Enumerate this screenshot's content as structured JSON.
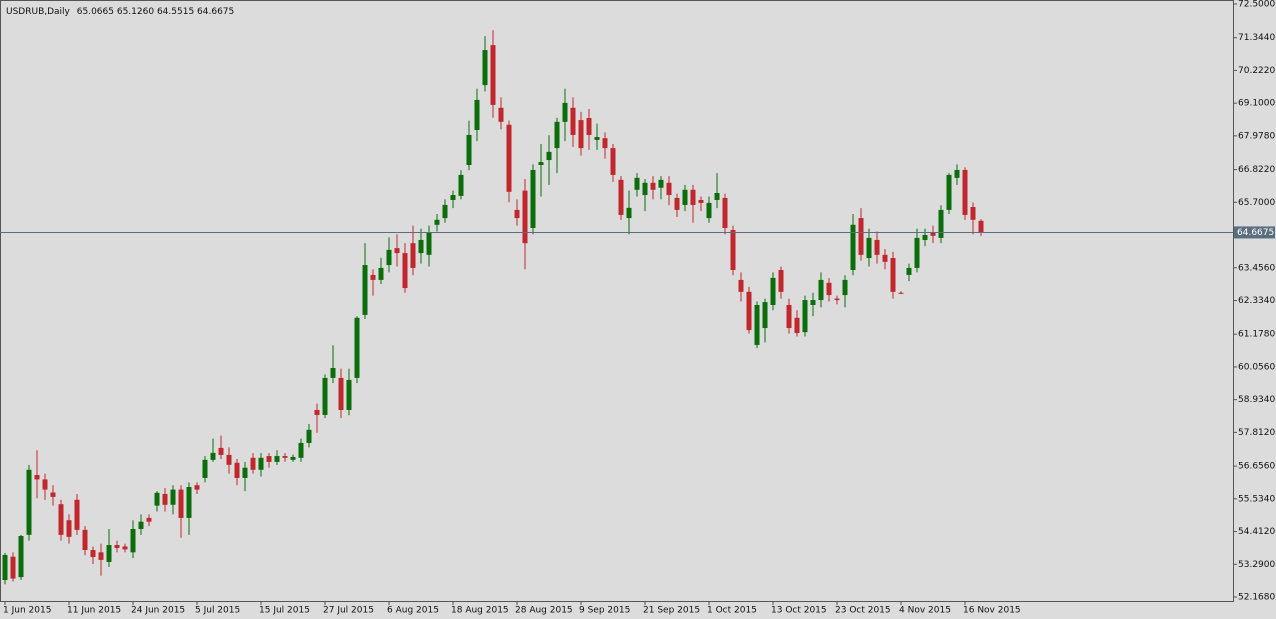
{
  "chart_data": {
    "type": "candlestick",
    "title": "USDRUB,Daily",
    "ohlc_labels": [
      "65.0665",
      "65.1260",
      "64.5515",
      "64.6675"
    ],
    "up_color": "#0b6e0b",
    "down_color": "#c1272d",
    "current_price": {
      "value": 64.6675,
      "label": "64.6675"
    },
    "categories": [
      "1 Jun 2015",
      null,
      null,
      null,
      null,
      null,
      null,
      null,
      "11 Jun 2015",
      null,
      null,
      null,
      null,
      null,
      null,
      null,
      "24 Jun 2015",
      null,
      null,
      null,
      null,
      null,
      null,
      null,
      "5 Jul 2015",
      null,
      null,
      null,
      null,
      null,
      null,
      null,
      "15 Jul 2015",
      null,
      null,
      null,
      null,
      null,
      null,
      null,
      "27 Jul 2015",
      null,
      null,
      null,
      null,
      null,
      null,
      null,
      "6 Aug 2015",
      null,
      null,
      null,
      null,
      null,
      null,
      null,
      "18 Aug 2015",
      null,
      null,
      null,
      null,
      null,
      null,
      null,
      "28 Aug 2015",
      null,
      null,
      null,
      null,
      null,
      null,
      null,
      "9 Sep 2015",
      null,
      null,
      null,
      null,
      null,
      null,
      null,
      "21 Sep 2015",
      null,
      null,
      null,
      null,
      null,
      null,
      null,
      "1 Oct 2015",
      null,
      null,
      null,
      null,
      null,
      null,
      null,
      "13 Oct 2015",
      null,
      null,
      null,
      null,
      null,
      null,
      null,
      "23 Oct 2015",
      null,
      null,
      null,
      null,
      null,
      null,
      null,
      "4 Nov 2015",
      null,
      null,
      null,
      null,
      null,
      null,
      null,
      "16 Nov 2015",
      null,
      null
    ],
    "open": [
      52.75,
      53.55,
      52.85,
      54.3,
      56.35,
      56.2,
      55.75,
      55.35,
      54.8,
      55.5,
      54.47,
      53.78,
      53.7,
      53.37,
      53.95,
      53.9,
      53.7,
      54.5,
      54.88,
      55.3,
      55.7,
      55.33,
      55.85,
      54.88,
      56.0,
      56.25,
      56.87,
      57.28,
      57.04,
      56.77,
      56.25,
      56.94,
      56.53,
      57.0,
      56.8,
      57.0,
      56.87,
      56.94,
      57.45,
      58.58,
      58.41,
      59.68,
      59.68,
      58.58,
      59.68,
      61.84,
      63.21,
      63.04,
      63.55,
      64.13,
      63.96,
      64.3,
      63.96,
      63.9,
      64.93,
      65.16,
      65.78,
      65.92,
      66.98,
      68.18,
      69.72,
      71.09,
      68.94,
      68.36,
      65.44,
      66.1,
      64.82,
      66.98,
      67.15,
      67.56,
      68.46,
      68.94,
      68.52,
      68.59,
      67.84,
      67.9,
      67.56,
      66.47,
      65.16,
      66.13,
      65.95,
      66.37,
      66.2,
      66.37,
      65.85,
      65.61,
      66.13,
      65.78,
      65.16,
      65.78,
      65.85,
      64.75,
      63.04,
      62.63,
      60.81,
      61.39,
      62.18,
      63.38,
      62.18,
      61.74,
      61.25,
      62.18,
      62.35,
      62.94,
      62.4,
      62.52,
      63.38,
      65.16,
      63.79,
      64.41,
      63.9,
      63.79,
      62.6,
      63.21,
      63.45,
      64.41,
      64.68,
      64.48,
      65.44,
      66.54,
      66.81,
      65.54,
      65.0665
    ],
    "high": [
      53.68,
      53.7,
      54.3,
      56.7,
      57.2,
      56.4,
      56.0,
      55.5,
      55.0,
      55.7,
      54.6,
      53.9,
      54.0,
      54.5,
      54.1,
      54.0,
      54.8,
      55.0,
      55.0,
      55.8,
      55.9,
      56.0,
      56.0,
      56.1,
      56.1,
      57.0,
      57.6,
      57.7,
      57.3,
      56.9,
      56.8,
      57.1,
      57.1,
      57.1,
      57.2,
      57.1,
      57.05,
      57.6,
      58.1,
      58.8,
      59.8,
      60.8,
      60.0,
      60.0,
      61.8,
      64.3,
      63.4,
      63.8,
      64.5,
      64.6,
      64.3,
      64.9,
      64.8,
      64.9,
      65.3,
      65.8,
      66.1,
      66.8,
      68.5,
      69.6,
      71.4,
      71.6,
      69.3,
      68.5,
      65.8,
      66.5,
      67.0,
      67.7,
      68.0,
      68.6,
      69.6,
      69.3,
      68.8,
      68.9,
      68.4,
      68.1,
      67.7,
      66.6,
      66.1,
      66.7,
      66.5,
      66.6,
      66.6,
      66.6,
      66.0,
      66.3,
      66.3,
      65.9,
      65.9,
      66.7,
      66.0,
      64.9,
      63.3,
      62.8,
      62.3,
      62.4,
      63.3,
      63.5,
      62.4,
      62.0,
      62.5,
      62.6,
      63.3,
      63.1,
      62.5,
      63.2,
      65.3,
      65.5,
      64.8,
      64.7,
      64.1,
      64.0,
      62.65,
      63.6,
      64.8,
      64.8,
      64.9,
      65.6,
      66.7,
      67.0,
      66.9,
      65.7,
      65.126
    ],
    "low": [
      52.6,
      52.7,
      52.75,
      54.1,
      55.55,
      55.5,
      55.3,
      54.1,
      54.0,
      54.3,
      53.6,
      53.3,
      52.9,
      53.2,
      53.7,
      53.7,
      53.5,
      54.3,
      54.6,
      55.1,
      55.1,
      55.0,
      54.2,
      54.3,
      55.7,
      56.1,
      56.8,
      56.9,
      56.4,
      56.0,
      55.8,
      56.4,
      56.3,
      56.6,
      56.7,
      56.8,
      56.8,
      56.8,
      57.3,
      57.8,
      58.3,
      59.5,
      58.3,
      58.4,
      59.5,
      61.7,
      62.5,
      62.9,
      63.3,
      63.5,
      62.6,
      63.2,
      63.6,
      63.5,
      64.7,
      65.0,
      65.5,
      65.8,
      66.8,
      67.8,
      69.5,
      68.6,
      68.2,
      65.7,
      64.9,
      63.4,
      64.6,
      65.9,
      66.3,
      66.7,
      67.8,
      67.6,
      67.3,
      67.5,
      67.5,
      67.2,
      66.4,
      65.1,
      64.6,
      65.9,
      65.4,
      65.8,
      65.8,
      65.6,
      65.2,
      65.4,
      65.0,
      65.4,
      65.0,
      65.5,
      64.6,
      63.2,
      62.3,
      61.2,
      60.7,
      60.9,
      62.0,
      62.4,
      61.2,
      61.1,
      61.1,
      61.8,
      62.1,
      62.3,
      62.2,
      62.1,
      63.2,
      63.7,
      63.5,
      63.6,
      63.4,
      62.4,
      62.55,
      63.0,
      63.3,
      64.2,
      64.3,
      64.3,
      65.3,
      66.3,
      65.1,
      64.6,
      64.5515
    ],
    "close": [
      53.61,
      52.8,
      54.26,
      56.53,
      56.2,
      55.85,
      55.6,
      54.3,
      54.23,
      54.47,
      53.78,
      53.54,
      53.44,
      53.95,
      53.85,
      53.8,
      54.5,
      54.75,
      54.75,
      55.74,
      55.33,
      55.85,
      54.88,
      55.94,
      55.85,
      56.87,
      57.11,
      57.04,
      56.7,
      56.25,
      56.6,
      56.53,
      56.94,
      56.8,
      57.0,
      56.94,
      56.97,
      57.45,
      57.9,
      58.41,
      59.68,
      60.02,
      58.58,
      59.61,
      61.74,
      63.55,
      63.04,
      63.45,
      64.07,
      63.96,
      62.76,
      63.45,
      64.41,
      64.68,
      65.1,
      65.61,
      65.95,
      66.64,
      68.01,
      69.21,
      70.92,
      69.04,
      68.46,
      66.06,
      65.16,
      64.3,
      66.81,
      67.08,
      67.43,
      68.46,
      69.11,
      68.01,
      67.56,
      68.01,
      67.94,
      67.56,
      66.64,
      65.27,
      65.51,
      66.54,
      66.37,
      66.13,
      66.47,
      65.95,
      65.44,
      66.13,
      65.61,
      65.68,
      65.68,
      66.02,
      64.82,
      63.38,
      62.63,
      61.32,
      62.18,
      62.28,
      63.11,
      62.63,
      61.39,
      61.22,
      62.35,
      62.35,
      63.04,
      62.52,
      62.35,
      63.04,
      64.93,
      63.9,
      64.48,
      63.9,
      63.66,
      62.63,
      62.58,
      63.45,
      64.48,
      64.58,
      64.55,
      65.44,
      66.64,
      66.81,
      65.27,
      65.1,
      64.6675
    ],
    "ylim": [
      52.168,
      72.5
    ],
    "yticks": [
      {
        "value": 72.5,
        "label": "72.5000"
      },
      {
        "value": 71.344,
        "label": "71.3440"
      },
      {
        "value": 70.222,
        "label": "70.2220"
      },
      {
        "value": 69.1,
        "label": "69.1000"
      },
      {
        "value": 67.978,
        "label": "67.9780"
      },
      {
        "value": 66.822,
        "label": "66.8220"
      },
      {
        "value": 65.7,
        "label": "65.7000"
      },
      {
        "value": 63.456,
        "label": "63.4560"
      },
      {
        "value": 62.334,
        "label": "62.3340"
      },
      {
        "value": 61.178,
        "label": "61.1780"
      },
      {
        "value": 60.056,
        "label": "60.0560"
      },
      {
        "value": 58.934,
        "label": "58.9340"
      },
      {
        "value": 57.812,
        "label": "57.8120"
      },
      {
        "value": 56.656,
        "label": "56.6560"
      },
      {
        "value": 55.534,
        "label": "55.5340"
      },
      {
        "value": 54.412,
        "label": "54.4120"
      },
      {
        "value": 53.29,
        "label": "53.2900"
      },
      {
        "value": 52.168,
        "label": "52.1680"
      }
    ]
  }
}
